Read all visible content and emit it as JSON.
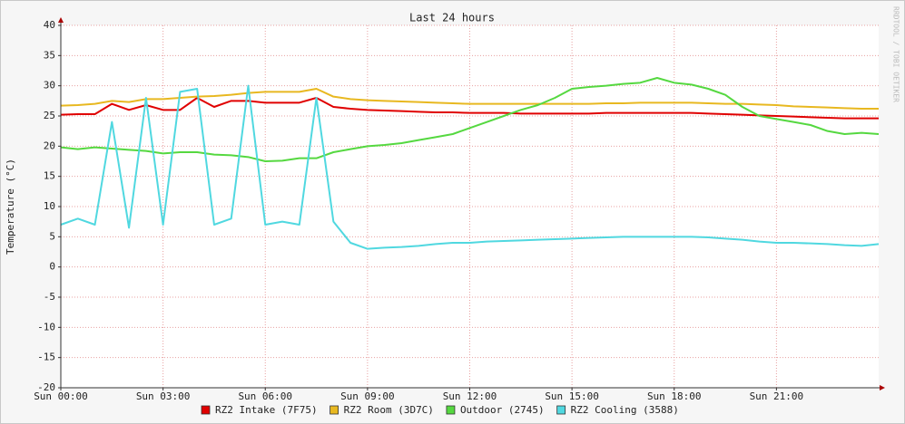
{
  "chart_data": {
    "type": "line",
    "title": "Last 24 hours",
    "y_label": "Temperature (°C)",
    "watermark": "RRDTOOL / TOBI OETIKER",
    "x": [
      0,
      0.5,
      1,
      1.5,
      2,
      2.5,
      3,
      3.5,
      4,
      4.5,
      5,
      5.5,
      6,
      6.5,
      7,
      7.5,
      8,
      8.5,
      9,
      9.5,
      10,
      10.5,
      11,
      11.5,
      12,
      12.5,
      13,
      13.5,
      14,
      14.5,
      15,
      15.5,
      16,
      16.5,
      17,
      17.5,
      18,
      18.5,
      19,
      19.5,
      20,
      20.5,
      21,
      21.5,
      22,
      22.5,
      23,
      23.5,
      24
    ],
    "series": [
      {
        "name": "RZ2 Intake (7F75)",
        "color": "#e00000",
        "values": [
          25.2,
          25.3,
          25.3,
          27,
          26,
          26.8,
          26,
          26,
          28,
          26.5,
          27.5,
          27.5,
          27.2,
          27.2,
          27.2,
          28,
          26.5,
          26.2,
          26,
          25.9,
          25.8,
          25.7,
          25.6,
          25.6,
          25.5,
          25.5,
          25.5,
          25.4,
          25.4,
          25.4,
          25.4,
          25.4,
          25.5,
          25.5,
          25.5,
          25.5,
          25.5,
          25.5,
          25.4,
          25.3,
          25.2,
          25.1,
          25,
          24.9,
          24.8,
          24.7,
          24.6,
          24.6,
          24.6
        ]
      },
      {
        "name": "RZ2 Room (3D7C)",
        "color": "#e8b820",
        "values": [
          26.7,
          26.8,
          27,
          27.5,
          27.3,
          27.8,
          27.8,
          28,
          28.2,
          28.3,
          28.5,
          28.8,
          29,
          29,
          29,
          29.5,
          28.2,
          27.8,
          27.6,
          27.5,
          27.4,
          27.3,
          27.2,
          27.1,
          27,
          27,
          27,
          27,
          27,
          27,
          27,
          27,
          27.1,
          27.1,
          27.2,
          27.2,
          27.2,
          27.2,
          27.1,
          27,
          27,
          26.9,
          26.8,
          26.6,
          26.5,
          26.4,
          26.3,
          26.2,
          26.2
        ]
      },
      {
        "name": "Outdoor (2745)",
        "color": "#55d840",
        "values": [
          19.8,
          19.5,
          19.8,
          19.6,
          19.4,
          19.2,
          18.8,
          19,
          19,
          18.6,
          18.5,
          18.2,
          17.5,
          17.6,
          18,
          18,
          19,
          19.5,
          20,
          20.2,
          20.5,
          21,
          21.5,
          22,
          23,
          24,
          25,
          26,
          26.8,
          28,
          29.5,
          29.8,
          30,
          30.3,
          30.5,
          31.3,
          30.5,
          30.2,
          29.5,
          28.5,
          26.5,
          25,
          24.5,
          24,
          23.5,
          22.5,
          22,
          22.2,
          22
        ]
      },
      {
        "name": "RZ2 Cooling (3588)",
        "color": "#50d8e0",
        "values": [
          7,
          8,
          7,
          24,
          6.5,
          28,
          7,
          29,
          29.5,
          7,
          8,
          30,
          7,
          7.5,
          7,
          28,
          7.5,
          4,
          3,
          3.2,
          3.3,
          3.5,
          3.8,
          4,
          4,
          4.2,
          4.3,
          4.4,
          4.5,
          4.6,
          4.7,
          4.8,
          4.9,
          5,
          5,
          5,
          5,
          5,
          4.9,
          4.7,
          4.5,
          4.2,
          4,
          4,
          3.9,
          3.8,
          3.6,
          3.5,
          3.8
        ]
      }
    ],
    "xlim": [
      0,
      24
    ],
    "xticks": [
      {
        "value": 0,
        "label": "Sun 00:00"
      },
      {
        "value": 3,
        "label": "Sun 03:00"
      },
      {
        "value": 6,
        "label": "Sun 06:00"
      },
      {
        "value": 9,
        "label": "Sun 09:00"
      },
      {
        "value": 12,
        "label": "Sun 12:00"
      },
      {
        "value": 15,
        "label": "Sun 15:00"
      },
      {
        "value": 18,
        "label": "Sun 18:00"
      },
      {
        "value": 21,
        "label": "Sun 21:00"
      }
    ],
    "ylim": [
      -20,
      40
    ],
    "yticks": [
      -20,
      -15,
      -10,
      -5,
      0,
      5,
      10,
      15,
      20,
      25,
      30,
      35,
      40
    ],
    "grid": true
  }
}
